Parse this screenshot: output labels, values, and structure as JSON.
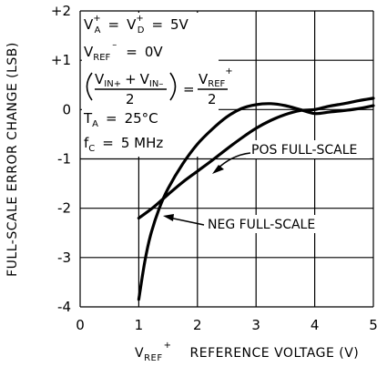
{
  "chart_data": {
    "type": "line",
    "xlabel": "V",
    "xlabel_sub": "REF",
    "xlabel_sup": "+",
    "xlabel_rest": "REFERENCE VOLTAGE (V)",
    "ylabel": "FULL-SCALE ERROR CHANGE (LSB)",
    "xlim": [
      0,
      5
    ],
    "ylim": [
      -4,
      2
    ],
    "x_ticks": [
      0,
      1,
      2,
      3,
      4,
      5
    ],
    "x_tick_labels": [
      "0",
      "1",
      "2",
      "3",
      "4",
      "5"
    ],
    "y_ticks": [
      -4,
      -3,
      -2,
      -1,
      0,
      1,
      2
    ],
    "y_tick_labels": [
      "-4",
      "-3",
      "-2",
      "-1",
      "0",
      "+1",
      "+2"
    ],
    "grid": true,
    "series": [
      {
        "name": "NEG FULL-SCALE",
        "x": [
          1.0,
          1.1,
          1.2,
          1.35,
          1.5,
          1.75,
          2.0,
          2.25,
          2.5,
          2.75,
          3.0,
          3.25,
          3.5,
          3.75,
          4.0,
          4.25,
          4.5,
          4.75,
          5.0
        ],
        "y": [
          -3.85,
          -3.1,
          -2.55,
          -2.0,
          -1.6,
          -1.1,
          -0.7,
          -0.4,
          -0.15,
          0.02,
          0.1,
          0.12,
          0.08,
          0.0,
          -0.08,
          -0.05,
          -0.02,
          0.02,
          0.08
        ]
      },
      {
        "name": "POS FULL-SCALE",
        "x": [
          1.0,
          1.25,
          1.5,
          1.75,
          2.0,
          2.25,
          2.5,
          2.75,
          3.0,
          3.25,
          3.5,
          3.75,
          4.0,
          4.25,
          4.5,
          4.75,
          5.0
        ],
        "y": [
          -2.2,
          -1.98,
          -1.72,
          -1.47,
          -1.25,
          -1.03,
          -0.8,
          -0.58,
          -0.38,
          -0.22,
          -0.1,
          -0.02,
          0.0,
          0.07,
          0.12,
          0.18,
          0.23
        ]
      }
    ],
    "annotations": [
      {
        "label": "POS FULL-SCALE",
        "text": "POS FULL-SCALE"
      },
      {
        "label": "NEG FULL-SCALE",
        "text": "NEG FULL-SCALE"
      }
    ],
    "conditions": {
      "line1": {
        "a": "V",
        "a_sub": "A",
        "a_sup": "+",
        "eq1": "=",
        "b": "V",
        "b_sub": "D",
        "b_sup": "+",
        "eq2": "=",
        "val": "5V"
      },
      "line2": {
        "a": "V",
        "a_sub": "REF",
        "a_sup": "–",
        "eq": "=",
        "val": "0V"
      },
      "line3": {
        "num_left": "V",
        "num_left_sub": "IN+",
        "plus": "+",
        "num_right": "V",
        "num_right_sub": "IN–",
        "den": "2",
        "eq": "=",
        "rhs": "V",
        "rhs_sub": "REF",
        "rhs_sup": "+",
        "rhs_den": "2"
      },
      "line4": {
        "a": "T",
        "a_sub": "A",
        "eq": "=",
        "val": "25°C"
      },
      "line5": {
        "a": "f",
        "a_sub": "C",
        "eq": "=",
        "val": "5 MHz"
      }
    }
  }
}
